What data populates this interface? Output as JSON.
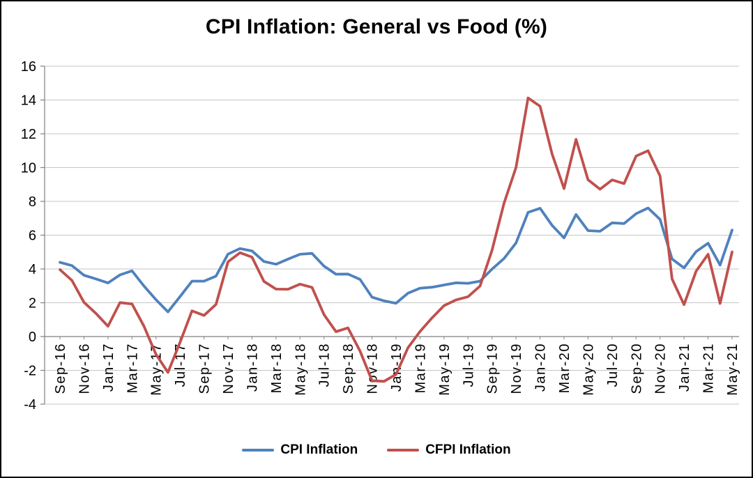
{
  "title": "CPI Inflation: General vs Food (%)",
  "colors": {
    "cpi_line": "#4F81BD",
    "cfpi_line": "#C0504D",
    "gridline": "#C6C6C6",
    "axis": "#808080",
    "text": "#000000",
    "background": "#FFFFFF",
    "frame_border": "#000000"
  },
  "legend": {
    "position": "bottom",
    "items": [
      {
        "label": "CPI Inflation",
        "color": "#4F81BD"
      },
      {
        "label": "CFPI Inflation",
        "color": "#C0504D"
      }
    ]
  },
  "chart_data": {
    "type": "line",
    "title": "CPI Inflation: General vs Food (%)",
    "grid": true,
    "ylim": [
      -4,
      16
    ],
    "ytick_step": 2,
    "label_interval": 2,
    "x_labels_rotation": -90,
    "x_axis_crosses_at": 0,
    "legend_position": "bottom",
    "x": [
      "Sep-16",
      "Oct-16",
      "Nov-16",
      "Dec-16",
      "Jan-17",
      "Feb-17",
      "Mar-17",
      "Apr-17",
      "May-17",
      "Jun-17",
      "Jul-17",
      "Aug-17",
      "Sep-17",
      "Oct-17",
      "Nov-17",
      "Dec-17",
      "Jan-18",
      "Feb-18",
      "Mar-18",
      "Apr-18",
      "May-18",
      "Jun-18",
      "Jul-18",
      "Aug-18",
      "Sep-18",
      "Oct-18",
      "Nov-18",
      "Dec-18",
      "Jan-19",
      "Feb-19",
      "Mar-19",
      "Apr-19",
      "May-19",
      "Jun-19",
      "Jul-19",
      "Aug-19",
      "Sep-19",
      "Oct-19",
      "Nov-19",
      "Dec-19",
      "Jan-20",
      "Feb-20",
      "Mar-20",
      "Apr-20",
      "May-20",
      "Jun-20",
      "Jul-20",
      "Aug-20",
      "Sep-20",
      "Oct-20",
      "Nov-20",
      "Dec-20",
      "Jan-21",
      "Feb-21",
      "Mar-21",
      "Apr-21",
      "May-21"
    ],
    "series": [
      {
        "name": "CPI Inflation",
        "color": "#4F81BD",
        "values": [
          4.39,
          4.2,
          3.63,
          3.41,
          3.17,
          3.65,
          3.89,
          2.99,
          2.18,
          1.46,
          2.36,
          3.28,
          3.28,
          3.58,
          4.88,
          5.21,
          5.07,
          4.44,
          4.28,
          4.58,
          4.87,
          4.92,
          4.17,
          3.69,
          3.7,
          3.38,
          2.33,
          2.11,
          1.97,
          2.57,
          2.86,
          2.92,
          3.05,
          3.18,
          3.15,
          3.28,
          3.99,
          4.62,
          5.54,
          7.35,
          7.59,
          6.58,
          5.84,
          7.22,
          6.27,
          6.23,
          6.73,
          6.69,
          7.27,
          7.61,
          6.93,
          4.59,
          4.06,
          5.03,
          5.52,
          4.23,
          6.3
        ]
      },
      {
        "name": "CFPI Inflation",
        "color": "#C0504D",
        "values": [
          3.96,
          3.32,
          2.03,
          1.37,
          0.61,
          2.01,
          1.93,
          0.61,
          -1.05,
          -2.12,
          -0.36,
          1.52,
          1.25,
          1.9,
          4.42,
          4.96,
          4.7,
          3.26,
          2.81,
          2.8,
          3.1,
          2.91,
          1.3,
          0.29,
          0.51,
          -0.86,
          -2.61,
          -2.65,
          -2.24,
          -0.66,
          0.3,
          1.1,
          1.83,
          2.17,
          2.36,
          2.99,
          5.11,
          7.89,
          10.01,
          14.12,
          13.63,
          10.81,
          8.76,
          11.67,
          9.28,
          8.72,
          9.27,
          9.05,
          10.68,
          11.0,
          9.5,
          3.41,
          1.89,
          3.87,
          4.87,
          1.96,
          5.01
        ]
      }
    ]
  }
}
